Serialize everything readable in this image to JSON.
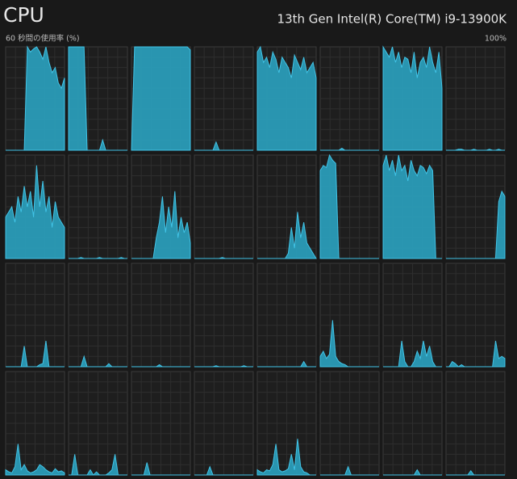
{
  "header": {
    "title": "CPU",
    "processor": "13th Gen Intel(R) Core(TM) i9-13900K"
  },
  "graph": {
    "caption": "60 秒間の使用率 (%)",
    "max_label": "100%",
    "ylim": [
      0,
      100
    ]
  },
  "cores": [
    {
      "values": [
        0,
        0,
        0,
        0,
        0,
        0,
        0,
        100,
        95,
        98,
        100,
        95,
        88,
        100,
        85,
        75,
        80,
        65,
        60,
        70
      ]
    },
    {
      "values": [
        100,
        100,
        100,
        100,
        100,
        100,
        0,
        0,
        0,
        0,
        0,
        10,
        0,
        0,
        0,
        0,
        0,
        0,
        0,
        0
      ]
    },
    {
      "values": [
        0,
        100,
        100,
        100,
        100,
        100,
        100,
        100,
        100,
        100,
        100,
        100,
        100,
        100,
        100,
        100,
        100,
        100,
        100,
        97
      ]
    },
    {
      "values": [
        0,
        0,
        0,
        0,
        0,
        0,
        0,
        8,
        0,
        0,
        0,
        0,
        0,
        0,
        0,
        0,
        0,
        0,
        0,
        0
      ]
    },
    {
      "values": [
        95,
        100,
        85,
        90,
        80,
        95,
        88,
        75,
        90,
        85,
        80,
        70,
        92,
        85,
        78,
        90,
        75,
        80,
        85,
        70
      ]
    },
    {
      "values": [
        0,
        0,
        0,
        0,
        0,
        0,
        0,
        2,
        0,
        0,
        0,
        0,
        0,
        0,
        0,
        0,
        0,
        0,
        0,
        0
      ]
    },
    {
      "values": [
        100,
        95,
        90,
        100,
        85,
        95,
        80,
        90,
        88,
        75,
        95,
        70,
        85,
        90,
        80,
        100,
        85,
        75,
        95,
        60
      ]
    },
    {
      "values": [
        0,
        0,
        0,
        0,
        1,
        1,
        0,
        0,
        0,
        1,
        0,
        0,
        0,
        0,
        1,
        0,
        0,
        1,
        0,
        0
      ]
    },
    {
      "values": [
        40,
        45,
        50,
        35,
        60,
        45,
        70,
        50,
        65,
        40,
        90,
        50,
        75,
        45,
        60,
        30,
        55,
        40,
        35,
        30
      ]
    },
    {
      "values": [
        0,
        0,
        0,
        0,
        1,
        0,
        0,
        0,
        0,
        0,
        1,
        0,
        0,
        0,
        0,
        0,
        0,
        1,
        0,
        0
      ]
    },
    {
      "values": [
        0,
        0,
        0,
        0,
        0,
        0,
        0,
        0,
        20,
        35,
        60,
        25,
        50,
        30,
        65,
        20,
        40,
        25,
        35,
        15
      ]
    },
    {
      "values": [
        0,
        0,
        0,
        0,
        0,
        0,
        0,
        0,
        0,
        1,
        0,
        0,
        0,
        0,
        0,
        0,
        0,
        0,
        0,
        0
      ]
    },
    {
      "values": [
        0,
        0,
        0,
        0,
        0,
        0,
        0,
        0,
        0,
        0,
        5,
        30,
        10,
        45,
        20,
        35,
        15,
        10,
        5,
        0
      ]
    },
    {
      "values": [
        85,
        90,
        88,
        100,
        95,
        92,
        0,
        0,
        0,
        0,
        0,
        0,
        0,
        0,
        0,
        0,
        0,
        0,
        0,
        0
      ]
    },
    {
      "values": [
        90,
        100,
        85,
        95,
        80,
        100,
        85,
        90,
        75,
        95,
        85,
        80,
        90,
        88,
        82,
        90,
        85,
        0,
        0,
        0
      ]
    },
    {
      "values": [
        0,
        0,
        0,
        0,
        0,
        0,
        0,
        0,
        0,
        0,
        0,
        0,
        0,
        0,
        0,
        0,
        0,
        55,
        65,
        60
      ]
    },
    {
      "values": [
        0,
        0,
        0,
        0,
        0,
        0,
        20,
        0,
        0,
        0,
        0,
        2,
        3,
        25,
        0,
        0,
        0,
        0,
        0,
        0
      ]
    },
    {
      "values": [
        0,
        0,
        0,
        0,
        0,
        10,
        0,
        0,
        0,
        0,
        0,
        0,
        0,
        3,
        0,
        0,
        0,
        0,
        0,
        0
      ]
    },
    {
      "values": [
        0,
        0,
        0,
        0,
        0,
        0,
        0,
        0,
        0,
        2,
        0,
        0,
        0,
        0,
        0,
        0,
        0,
        0,
        0,
        0
      ]
    },
    {
      "values": [
        0,
        0,
        0,
        0,
        0,
        0,
        0,
        1,
        0,
        0,
        0,
        0,
        0,
        0,
        0,
        0,
        1,
        0,
        0,
        0
      ]
    },
    {
      "values": [
        0,
        0,
        0,
        0,
        0,
        0,
        0,
        0,
        0,
        0,
        0,
        0,
        0,
        0,
        0,
        5,
        0,
        0,
        0,
        0
      ]
    },
    {
      "values": [
        10,
        15,
        8,
        12,
        45,
        10,
        5,
        3,
        2,
        0,
        0,
        0,
        0,
        0,
        0,
        0,
        0,
        0,
        0,
        0
      ]
    },
    {
      "values": [
        0,
        0,
        0,
        0,
        0,
        0,
        25,
        5,
        0,
        0,
        5,
        15,
        8,
        25,
        10,
        20,
        5,
        0,
        0,
        0
      ]
    },
    {
      "values": [
        0,
        0,
        5,
        3,
        0,
        2,
        0,
        0,
        0,
        0,
        0,
        0,
        0,
        0,
        0,
        0,
        25,
        8,
        10,
        8
      ]
    },
    {
      "values": [
        5,
        3,
        2,
        8,
        30,
        5,
        10,
        4,
        2,
        3,
        5,
        10,
        8,
        5,
        3,
        2,
        6,
        3,
        4,
        2
      ]
    },
    {
      "values": [
        0,
        0,
        20,
        0,
        0,
        0,
        0,
        5,
        0,
        3,
        0,
        0,
        0,
        2,
        5,
        20,
        0,
        0,
        0,
        0
      ]
    },
    {
      "values": [
        0,
        0,
        0,
        0,
        0,
        12,
        0,
        0,
        0,
        0,
        0,
        0,
        0,
        0,
        0,
        0,
        0,
        0,
        0,
        0
      ]
    },
    {
      "values": [
        0,
        0,
        0,
        0,
        0,
        8,
        0,
        0,
        0,
        0,
        0,
        0,
        0,
        0,
        0,
        0,
        0,
        0,
        0,
        0
      ]
    },
    {
      "values": [
        5,
        3,
        2,
        5,
        4,
        10,
        30,
        5,
        3,
        4,
        6,
        20,
        5,
        35,
        8,
        3,
        2,
        0,
        0,
        0
      ]
    },
    {
      "values": [
        0,
        0,
        0,
        0,
        0,
        0,
        0,
        0,
        0,
        8,
        0,
        0,
        0,
        0,
        0,
        0,
        0,
        0,
        0,
        0
      ]
    },
    {
      "values": [
        0,
        0,
        0,
        0,
        0,
        0,
        0,
        0,
        0,
        0,
        0,
        5,
        0,
        0,
        0,
        0,
        0,
        0,
        0,
        0
      ]
    },
    {
      "values": [
        0,
        0,
        0,
        0,
        0,
        0,
        0,
        0,
        4,
        0,
        0,
        0,
        0,
        0,
        0,
        0,
        0,
        0,
        0,
        0
      ]
    }
  ]
}
